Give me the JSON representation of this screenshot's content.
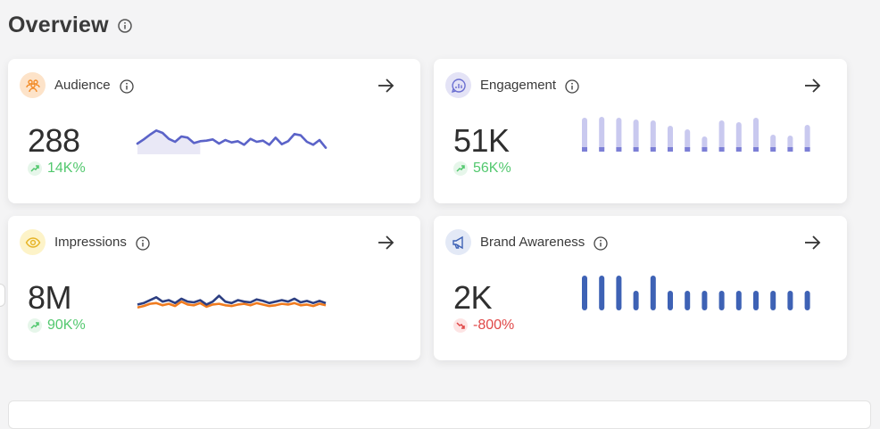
{
  "page": {
    "title": "Overview"
  },
  "cards": [
    {
      "title": "Audience",
      "value": "288",
      "trend": "14K%",
      "trend_dir": "up",
      "icon": "audience-icon",
      "accent": "#f28c28",
      "badge_bg": "#fde3c9",
      "chart": {
        "type": "area",
        "color": "#5b63c8",
        "fill": "#e9e8f6",
        "values": [
          40,
          47,
          55,
          62,
          58,
          48,
          43,
          52,
          50,
          41,
          44,
          45,
          47,
          40,
          46,
          42,
          44,
          38,
          48,
          43,
          45,
          38,
          50,
          39,
          44,
          56,
          54,
          43,
          38,
          46,
          33
        ]
      }
    },
    {
      "title": "Engagement",
      "value": "51K",
      "trend": "56K%",
      "trend_dir": "up",
      "icon": "engagement-icon",
      "accent": "#6b6fd1",
      "badge_bg": "#e4e3f6",
      "chart": {
        "type": "bar",
        "color": "#c9c9ef",
        "base": "#7c7fd6",
        "values": [
          38,
          39,
          38,
          36,
          35,
          29,
          25,
          17,
          35,
          33,
          38,
          19,
          18,
          30,
          36
        ]
      }
    },
    {
      "title": "Impressions",
      "value": "8M",
      "trend": "90K%",
      "trend_dir": "up",
      "icon": "eye-icon",
      "accent": "#e6b325",
      "badge_bg": "#fdf3c8",
      "chart": {
        "type": "multiline",
        "series": [
          {
            "color": "#f07b1f",
            "values": [
              30,
              32,
              35,
              36,
              33,
              35,
              32,
              38,
              34,
              33,
              36,
              31,
              34,
              35,
              33,
              32,
              34,
              35,
              33,
              36,
              34,
              32,
              33,
              35,
              34,
              36,
              33,
              34,
              32,
              35,
              33
            ]
          },
          {
            "color": "#2d3f82",
            "values": [
              34,
              36,
              40,
              44,
              38,
              40,
              36,
              42,
              38,
              37,
              40,
              34,
              38,
              46,
              38,
              36,
              40,
              38,
              37,
              41,
              39,
              36,
              38,
              40,
              38,
              42,
              37,
              39,
              36,
              39,
              36
            ]
          }
        ]
      }
    },
    {
      "title": "Brand Awareness",
      "value": "2K",
      "trend": "-800%",
      "trend_dir": "down",
      "icon": "megaphone-icon",
      "accent": "#3e62b5",
      "badge_bg": "#e3e9f6",
      "chart": {
        "type": "bar-solid",
        "color": "#3e62b5",
        "values": [
          39,
          39,
          39,
          22,
          39,
          22,
          22,
          22,
          22,
          22,
          22,
          22,
          22,
          22,
          22
        ]
      }
    }
  ],
  "colors": {
    "up": "#52c86e",
    "up_bg": "#e6f6ea",
    "down": "#e04848",
    "down_bg": "#fde4e4"
  }
}
